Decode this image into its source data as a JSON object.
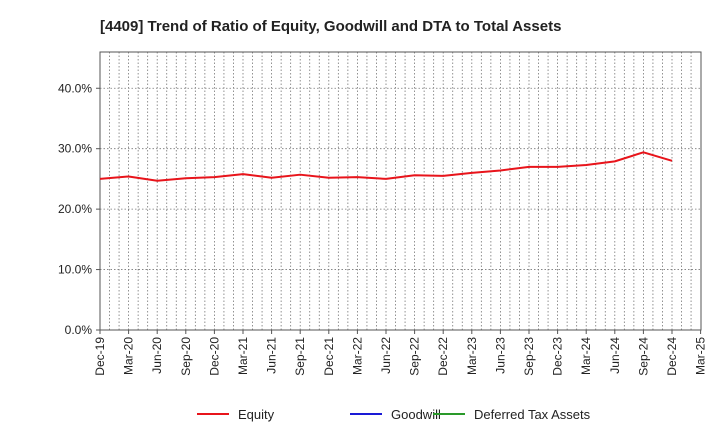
{
  "chart_data": {
    "type": "line",
    "title": "[4409]  Trend of Ratio of Equity, Goodwill and DTA to Total Assets",
    "xlabel": "",
    "ylabel": "",
    "ylim": [
      0,
      46
    ],
    "y_ticks": [
      0,
      10,
      20,
      30,
      40
    ],
    "y_tick_labels": [
      "0.0%",
      "10.0%",
      "20.0%",
      "30.0%",
      "40.0%"
    ],
    "x_tick_labels": [
      "Dec-19",
      "Mar-20",
      "Jun-20",
      "Sep-20",
      "Dec-20",
      "Mar-21",
      "Jun-21",
      "Sep-21",
      "Dec-21",
      "Mar-22",
      "Jun-22",
      "Sep-22",
      "Dec-22",
      "Mar-23",
      "Jun-23",
      "Sep-23",
      "Dec-23",
      "Mar-24",
      "Jun-24",
      "Sep-24",
      "Dec-24",
      "Mar-25"
    ],
    "grid": true,
    "legend_position": "bottom",
    "series": [
      {
        "name": "Equity",
        "color": "#e8141b",
        "values": [
          25.0,
          25.4,
          24.7,
          25.1,
          25.3,
          25.8,
          25.2,
          25.7,
          25.2,
          25.3,
          25.0,
          25.6,
          25.5,
          26.0,
          26.4,
          27.0,
          27.0,
          27.3,
          27.9,
          29.4,
          28.0,
          null
        ]
      },
      {
        "name": "Goodwill",
        "color": "#1a1ad6",
        "values": []
      },
      {
        "name": "Deferred Tax Assets",
        "color": "#2a9a2a",
        "values": []
      }
    ]
  }
}
